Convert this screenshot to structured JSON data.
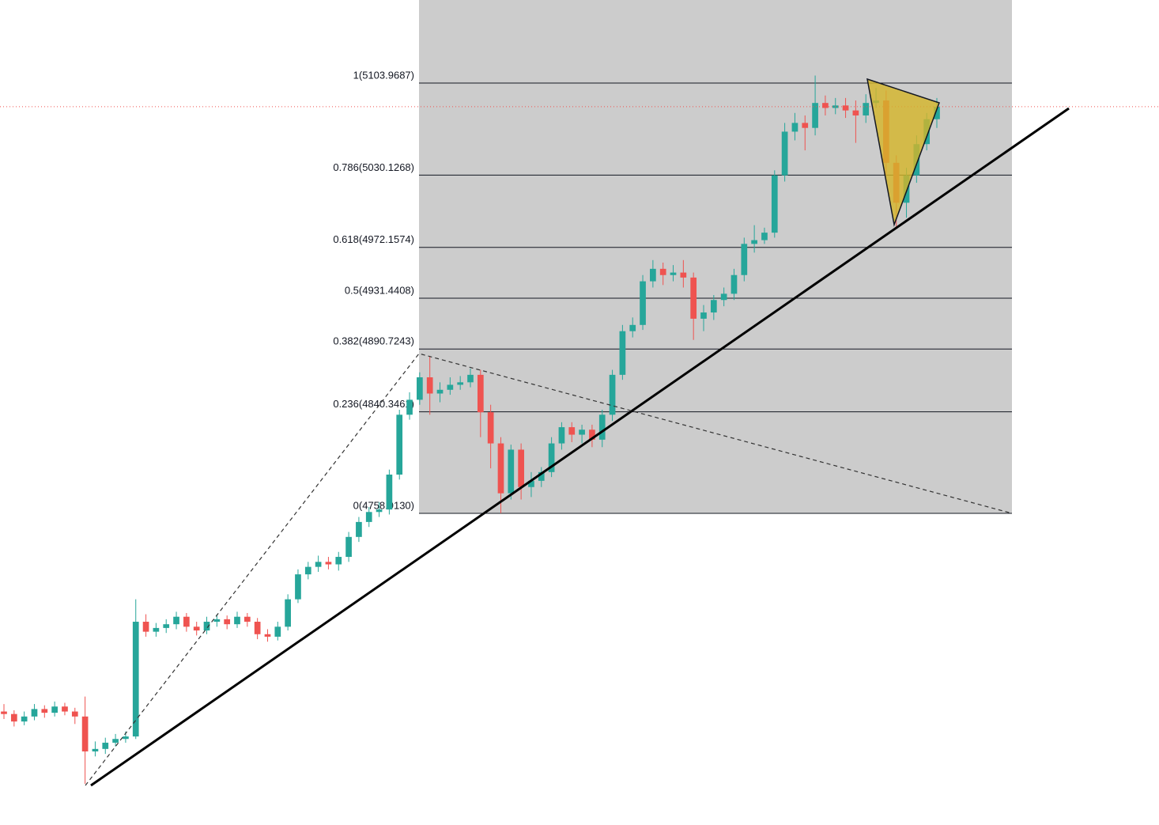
{
  "chart_data": {
    "type": "candlestick",
    "up_color": "#26a69a",
    "down_color": "#ef5350",
    "fib_zone_color": "#cccccc",
    "fib_levels": [
      {
        "value": 5103.9687,
        "label": "1(5103.9687)"
      },
      {
        "value": 5030.1268,
        "label": "0.786(5030.1268)"
      },
      {
        "value": 4972.1574,
        "label": "0.618(4972.1574)"
      },
      {
        "value": 4931.4408,
        "label": "0.5(4931.4408)"
      },
      {
        "value": 4890.7243,
        "label": "0.382(4890.7243)"
      },
      {
        "value": 4840.3461,
        "label": "0.236(4840.3461)"
      },
      {
        "value": 4758.913,
        "label": "0(4758.9130)"
      }
    ],
    "candles": [
      [
        4600,
        4606,
        4594,
        4598
      ],
      [
        4598,
        4601,
        4588,
        4592
      ],
      [
        4592,
        4600,
        4589,
        4596
      ],
      [
        4596,
        4606,
        4593,
        4602
      ],
      [
        4602,
        4605,
        4595,
        4599
      ],
      [
        4599,
        4608,
        4596,
        4604
      ],
      [
        4604,
        4607,
        4597,
        4600
      ],
      [
        4600,
        4603,
        4590,
        4596
      ],
      [
        4596,
        4612,
        4542,
        4568
      ],
      [
        4568,
        4576,
        4564,
        4570
      ],
      [
        4570,
        4579,
        4566,
        4575
      ],
      [
        4575,
        4582,
        4572,
        4578
      ],
      [
        4578,
        4584,
        4575,
        4580
      ],
      [
        4580,
        4690,
        4578,
        4672
      ],
      [
        4672,
        4678,
        4660,
        4664
      ],
      [
        4664,
        4671,
        4660,
        4667
      ],
      [
        4667,
        4674,
        4663,
        4670
      ],
      [
        4670,
        4680,
        4666,
        4676
      ],
      [
        4676,
        4679,
        4664,
        4668
      ],
      [
        4668,
        4672,
        4661,
        4665
      ],
      [
        4665,
        4676,
        4662,
        4672
      ],
      [
        4672,
        4678,
        4668,
        4674
      ],
      [
        4674,
        4677,
        4666,
        4670
      ],
      [
        4670,
        4680,
        4667,
        4676
      ],
      [
        4676,
        4679,
        4668,
        4672
      ],
      [
        4672,
        4675,
        4658,
        4662
      ],
      [
        4662,
        4666,
        4656,
        4660
      ],
      [
        4660,
        4672,
        4657,
        4668
      ],
      [
        4668,
        4694,
        4665,
        4690
      ],
      [
        4690,
        4714,
        4687,
        4710
      ],
      [
        4710,
        4720,
        4706,
        4716
      ],
      [
        4716,
        4725,
        4712,
        4720
      ],
      [
        4720,
        4724,
        4714,
        4718
      ],
      [
        4718,
        4728,
        4713,
        4724
      ],
      [
        4724,
        4744,
        4720,
        4740
      ],
      [
        4740,
        4756,
        4736,
        4752
      ],
      [
        4752,
        4764,
        4748,
        4760
      ],
      [
        4760,
        4768,
        4756,
        4762
      ],
      [
        4762,
        4794,
        4758,
        4790
      ],
      [
        4790,
        4842,
        4786,
        4838
      ],
      [
        4838,
        4856,
        4834,
        4850
      ],
      [
        4850,
        4872,
        4846,
        4868
      ],
      [
        4868,
        4885,
        4838,
        4855
      ],
      [
        4855,
        4864,
        4848,
        4858
      ],
      [
        4858,
        4868,
        4854,
        4862
      ],
      [
        4862,
        4869,
        4858,
        4864
      ],
      [
        4864,
        4875,
        4860,
        4870
      ],
      [
        4870,
        4874,
        4820,
        4840
      ],
      [
        4840,
        4846,
        4795,
        4815
      ],
      [
        4815,
        4820,
        4759,
        4775
      ],
      [
        4775,
        4814,
        4770,
        4810
      ],
      [
        4810,
        4815,
        4770,
        4780
      ],
      [
        4780,
        4792,
        4772,
        4785
      ],
      [
        4785,
        4796,
        4780,
        4792
      ],
      [
        4792,
        4820,
        4788,
        4815
      ],
      [
        4815,
        4832,
        4810,
        4828
      ],
      [
        4828,
        4832,
        4816,
        4822
      ],
      [
        4822,
        4830,
        4815,
        4826
      ],
      [
        4826,
        4830,
        4812,
        4818
      ],
      [
        4818,
        4842,
        4812,
        4838
      ],
      [
        4838,
        4874,
        4833,
        4870
      ],
      [
        4870,
        4910,
        4866,
        4905
      ],
      [
        4905,
        4916,
        4900,
        4910
      ],
      [
        4910,
        4950,
        4906,
        4945
      ],
      [
        4945,
        4962,
        4940,
        4955
      ],
      [
        4955,
        4960,
        4942,
        4950
      ],
      [
        4950,
        4958,
        4945,
        4952
      ],
      [
        4952,
        4962,
        4940,
        4948
      ],
      [
        4948,
        4952,
        4898,
        4915
      ],
      [
        4915,
        4926,
        4905,
        4920
      ],
      [
        4920,
        4934,
        4914,
        4930
      ],
      [
        4930,
        4940,
        4925,
        4935
      ],
      [
        4935,
        4955,
        4930,
        4950
      ],
      [
        4950,
        4980,
        4945,
        4975
      ],
      [
        4975,
        4990,
        4968,
        4978
      ],
      [
        4978,
        4988,
        4975,
        4984
      ],
      [
        4984,
        5034,
        4980,
        5030
      ],
      [
        5030,
        5072,
        5025,
        5065
      ],
      [
        5065,
        5080,
        5058,
        5072
      ],
      [
        5072,
        5078,
        5050,
        5068
      ],
      [
        5068,
        5110,
        5062,
        5088
      ],
      [
        5088,
        5094,
        5078,
        5084
      ],
      [
        5084,
        5092,
        5079,
        5086
      ],
      [
        5086,
        5092,
        5076,
        5082
      ],
      [
        5082,
        5090,
        5056,
        5078
      ],
      [
        5078,
        5095,
        5072,
        5088
      ],
      [
        5088,
        5100,
        5084,
        5090
      ],
      [
        5090,
        5098,
        5030,
        5040
      ],
      [
        5040,
        5046,
        4987,
        5008
      ],
      [
        5008,
        5036,
        4996,
        5030
      ],
      [
        5030,
        5062,
        5024,
        5055
      ],
      [
        5055,
        5080,
        5050,
        5075
      ],
      [
        5075,
        5092,
        5068,
        5085
      ]
    ]
  }
}
